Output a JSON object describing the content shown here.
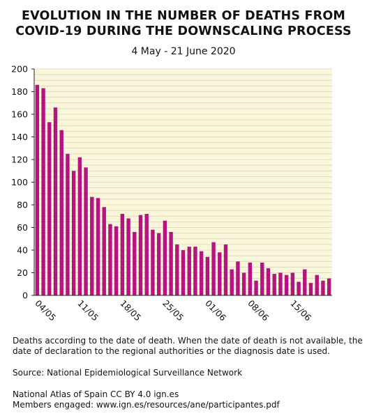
{
  "title": {
    "line1": "EVOLUTION IN THE NUMBER OF DEATHS FROM",
    "line2": "COVID-19 DURING THE DOWNSCALING PROCESS"
  },
  "subtitle": "4 May - 21 June 2020",
  "footer": {
    "note_line1": "Deaths according to the date of death. When the date of death is not available, the",
    "note_line2": "date of declaration to the regional authorities or the diagnosis date is used.",
    "source": "Source: National Epidemiological Surveillance Network",
    "credit_line1": "National Atlas of Spain CC BY 4.0 ign.es",
    "credit_line2": "Members engaged: www.ign.es/resources/ane/participantes.pdf"
  },
  "colors": {
    "bar": "#b5137f",
    "plot_background": "#faf7dc",
    "grid": "#d8d3b0"
  },
  "chart_data": {
    "type": "bar",
    "title": "EVOLUTION IN THE NUMBER OF DEATHS FROM COVID-19 DURING THE DOWNSCALING PROCESS",
    "subtitle": "4 May - 21 June 2020",
    "xlabel": "",
    "ylabel": "",
    "ylim": [
      0,
      200
    ],
    "yticks": [
      0,
      20,
      40,
      60,
      80,
      100,
      120,
      140,
      160,
      180,
      200
    ],
    "grid": true,
    "categories": [
      "04/05",
      "05/05",
      "06/05",
      "07/05",
      "08/05",
      "09/05",
      "10/05",
      "11/05",
      "12/05",
      "13/05",
      "14/05",
      "15/05",
      "16/05",
      "17/05",
      "18/05",
      "19/05",
      "20/05",
      "21/05",
      "22/05",
      "23/05",
      "24/05",
      "25/05",
      "26/05",
      "27/05",
      "28/05",
      "29/05",
      "30/05",
      "31/05",
      "01/06",
      "02/06",
      "03/06",
      "04/06",
      "05/06",
      "06/06",
      "07/06",
      "08/06",
      "09/06",
      "10/06",
      "11/06",
      "12/06",
      "13/06",
      "14/06",
      "15/06",
      "16/06",
      "17/06",
      "18/06",
      "19/06",
      "20/06",
      "21/06"
    ],
    "xtick_labels": [
      "04/05",
      "11/05",
      "18/05",
      "25/05",
      "01/06",
      "08/06",
      "15/06"
    ],
    "values": [
      186,
      183,
      153,
      166,
      146,
      125,
      110,
      122,
      113,
      87,
      86,
      78,
      63,
      61,
      72,
      68,
      56,
      71,
      72,
      58,
      55,
      66,
      56,
      45,
      40,
      43,
      43,
      39,
      34,
      47,
      38,
      45,
      23,
      30,
      20,
      29,
      13,
      29,
      24,
      19,
      20,
      18,
      20,
      12,
      23,
      11,
      18,
      13,
      15
    ]
  }
}
